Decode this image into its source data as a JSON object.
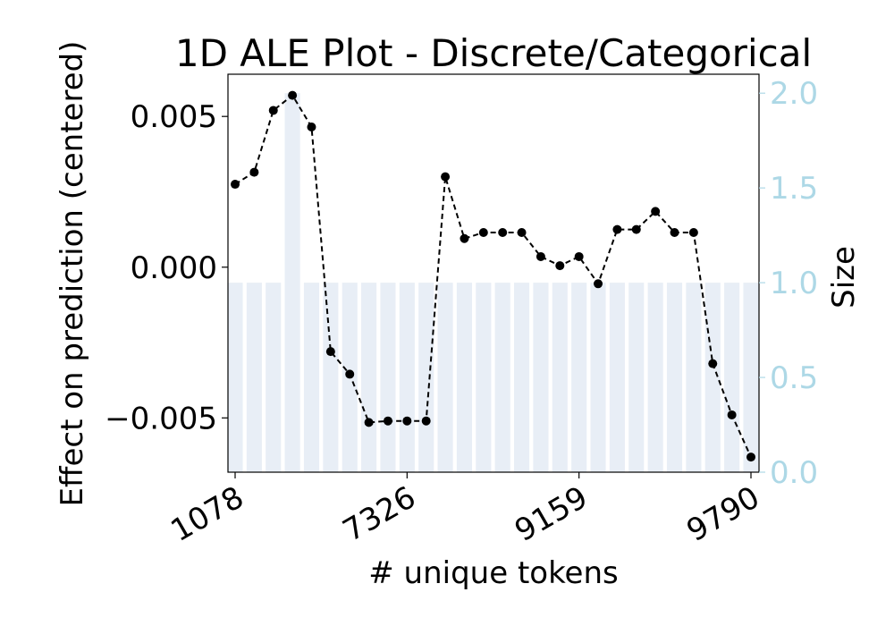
{
  "chart_data": {
    "type": "line",
    "title": "1D ALE Plot - Discrete/Categorical",
    "xlabel": "# unique tokens",
    "ylabel": "Effect on prediction (centered)",
    "y2label": "Size",
    "xtick_labels": [
      "1078",
      "7326",
      "9159",
      "9790"
    ],
    "xtick_positions": [
      0,
      9,
      18,
      27
    ],
    "ylim": [
      -0.0068,
      0.0064
    ],
    "yticks": [
      0.005,
      0.0,
      -0.005
    ],
    "ytick_labels": [
      "0.005",
      "0.000",
      "−0.005"
    ],
    "y2lim": [
      0,
      2.1
    ],
    "y2ticks": [
      0.0,
      0.5,
      1.0,
      1.5,
      2.0
    ],
    "y2tick_labels": [
      "0.0",
      "0.5",
      "1.0",
      "1.5",
      "2.0"
    ],
    "series": [
      {
        "type": "line",
        "x": [
          0,
          1,
          2,
          3,
          4,
          5,
          6,
          7,
          8,
          9,
          10,
          11,
          12,
          13,
          14,
          15,
          16,
          17,
          18,
          19,
          20,
          21,
          22,
          23,
          24,
          25,
          26,
          27
        ],
        "values": [
          0.00275,
          0.00315,
          0.0052,
          0.0057,
          0.00465,
          -0.0028,
          -0.00355,
          -0.00515,
          -0.0051,
          -0.0051,
          -0.0051,
          0.003,
          0.00095,
          0.00115,
          0.00115,
          0.00115,
          0.00035,
          5e-05,
          0.00035,
          -0.00055,
          0.00125,
          0.00125,
          0.00185,
          0.00115,
          0.00115,
          -0.0032,
          -0.0049,
          -0.0063
        ]
      },
      {
        "type": "bar",
        "axis": "right",
        "x": [
          0,
          1,
          2,
          3,
          4,
          5,
          6,
          7,
          8,
          9,
          10,
          11,
          12,
          13,
          14,
          15,
          16,
          17,
          18,
          19,
          20,
          21,
          22,
          23,
          24,
          25,
          26,
          27
        ],
        "values": [
          1,
          1,
          1,
          2,
          1,
          1,
          1,
          1,
          1,
          1,
          1,
          1,
          1,
          1,
          1,
          1,
          1,
          1,
          1,
          1,
          1,
          1,
          1,
          1,
          1,
          1,
          1,
          1
        ]
      }
    ],
    "colors": {
      "line": "#000000",
      "bar": "#e8eef6",
      "right_axis": "#add8e6"
    }
  }
}
